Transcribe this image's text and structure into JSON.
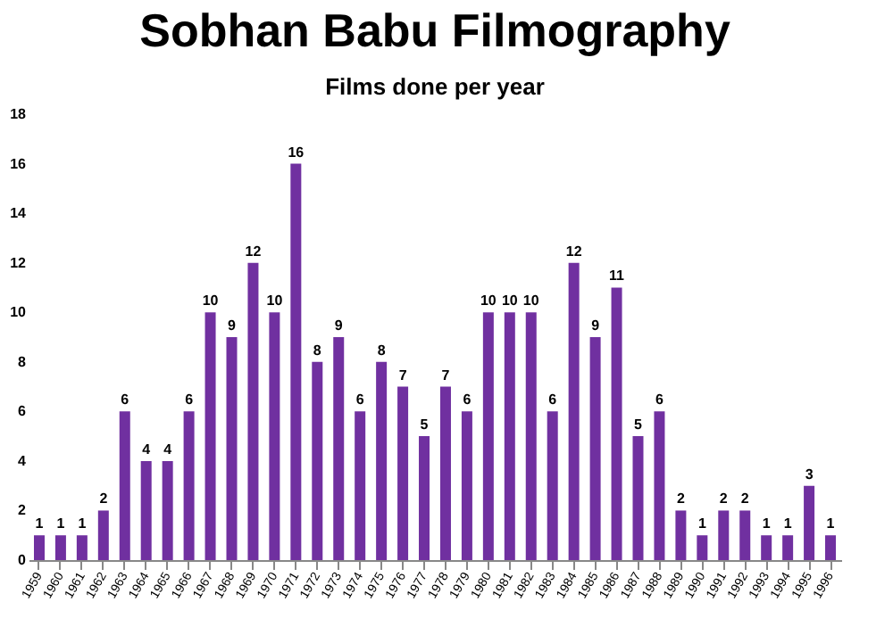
{
  "chart_data": {
    "type": "bar",
    "title": "Sobhan Babu Filmography",
    "subtitle": "Films done per year",
    "categories": [
      "1959",
      "1960",
      "1961",
      "1962",
      "1963",
      "1964",
      "1965",
      "1966",
      "1967",
      "1968",
      "1969",
      "1970",
      "1971",
      "1972",
      "1973",
      "1974",
      "1975",
      "1976",
      "1977",
      "1978",
      "1979",
      "1980",
      "1981",
      "1982",
      "1983",
      "1984",
      "1985",
      "1986",
      "1987",
      "1988",
      "1989",
      "1990",
      "1991",
      "1992",
      "1993",
      "1994",
      "1995",
      "1996"
    ],
    "values": [
      1,
      1,
      1,
      2,
      6,
      4,
      4,
      6,
      10,
      9,
      12,
      10,
      16,
      8,
      9,
      6,
      8,
      7,
      5,
      7,
      6,
      10,
      10,
      10,
      6,
      12,
      9,
      11,
      5,
      6,
      2,
      1,
      2,
      2,
      1,
      1,
      3,
      1
    ],
    "color": "#7030a0",
    "ylim": [
      0,
      18
    ],
    "yticks": [
      0,
      2,
      4,
      6,
      8,
      10,
      12,
      14,
      16,
      18
    ],
    "grid": false,
    "data_labels": true
  }
}
